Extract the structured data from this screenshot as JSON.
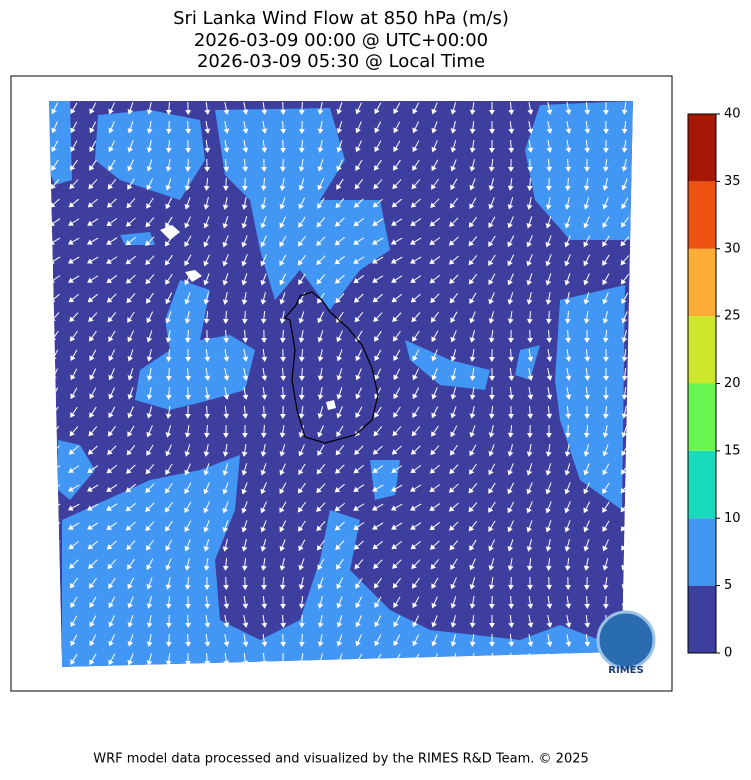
{
  "title": [
    "Sri Lanka Wind Flow at 850 hPa (m/s)",
    "2026-03-09 00:00 @ UTC+00:00",
    "2026-03-09 05:30 @ Local Time"
  ],
  "colorbar": {
    "levels": [
      0,
      5,
      10,
      15,
      20,
      25,
      30,
      35,
      40
    ],
    "colors": [
      "#3e3e9f",
      "#4297f5",
      "#18dabd",
      "#68f552",
      "#cde82c",
      "#fdad36",
      "#ee5210",
      "#a51803"
    ]
  },
  "logo": "RIMES",
  "footer": "WRF model data processed and visualized by the RIMES R&D Team. © 2025"
}
